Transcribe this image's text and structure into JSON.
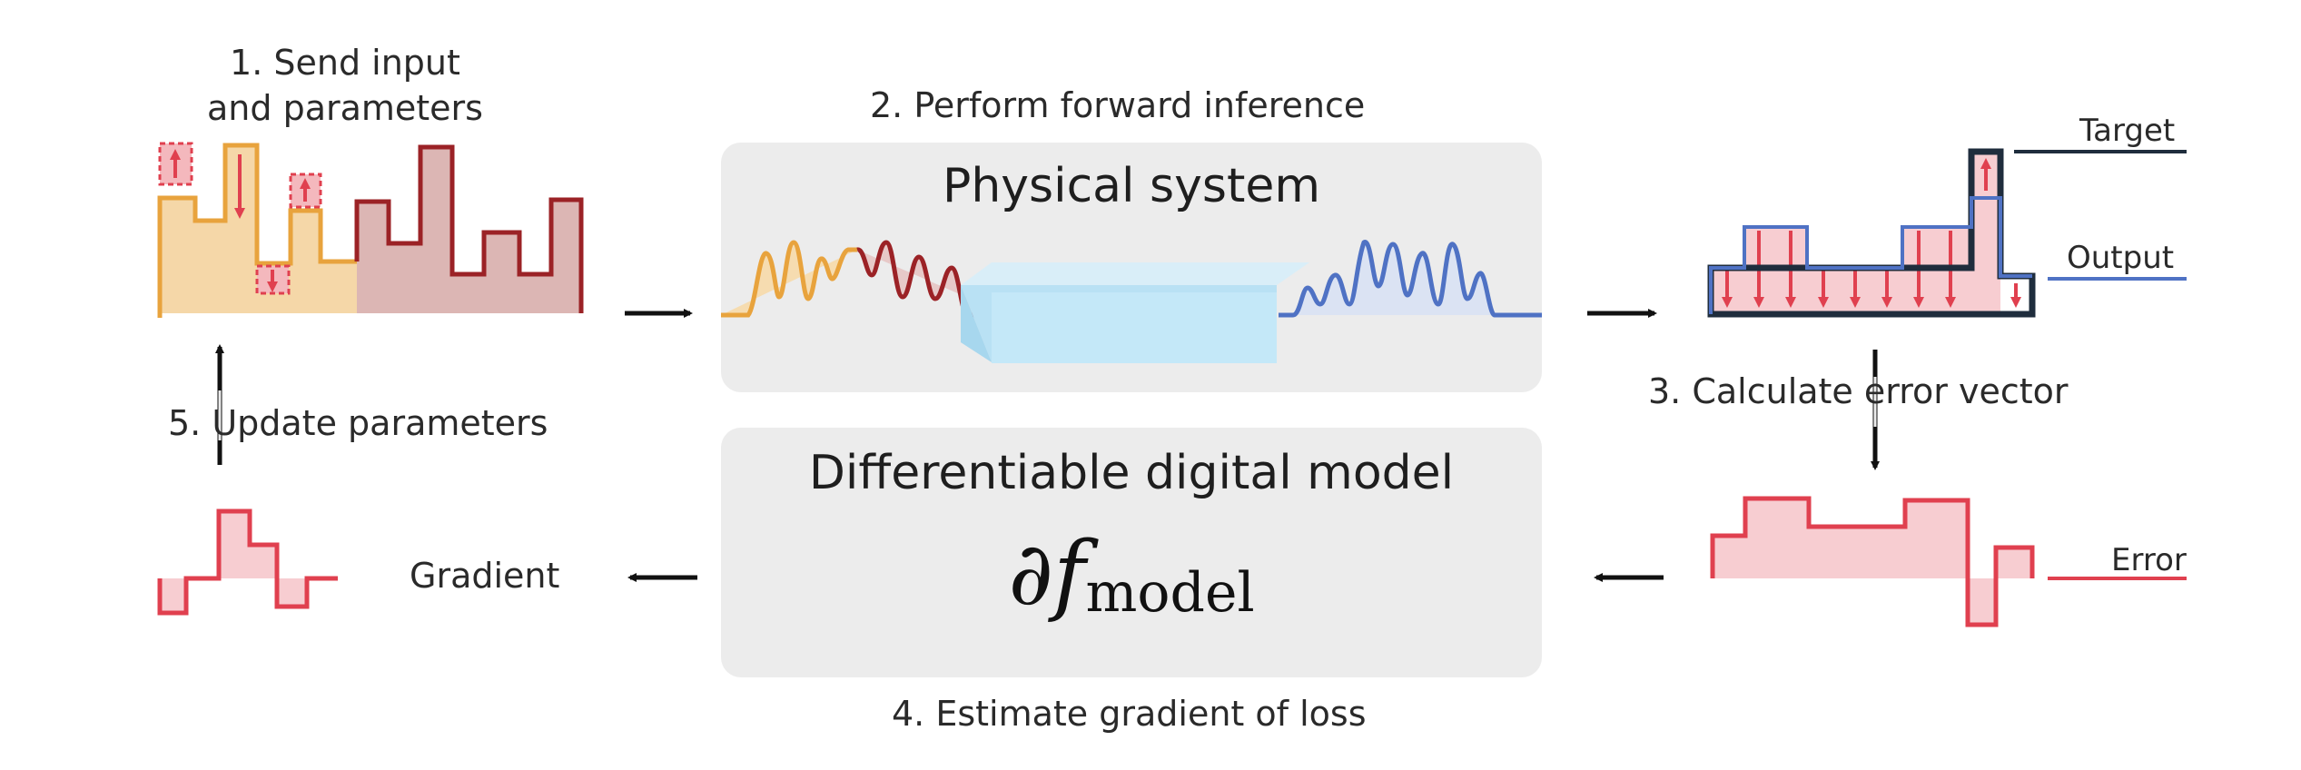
{
  "steps": {
    "send_line1": "1. Send input",
    "send_line2": "and parameters",
    "forward": "2. Perform forward inference",
    "error_calc": "3. Calculate error vector",
    "gradient_est": "4. Estimate gradient of loss",
    "update": "5. Update parameters"
  },
  "physical_box": {
    "title": "Physical system"
  },
  "digital_box": {
    "title": "Differentiable digital model",
    "formula_symbol": "∂",
    "formula_f": "f",
    "formula_sub": "model"
  },
  "legend": {
    "target": "Target",
    "output": "Output",
    "error": "Error",
    "gradient": "Gradient"
  },
  "colors": {
    "input_orange": "#e8a33d",
    "param_darkred": "#9b2226",
    "output_blue": "#4f72c4",
    "error_red": "#e0404f",
    "target_navy": "#1f2d3d",
    "crystal_blue": "#bfe5f6",
    "box_gray": "#ececec"
  }
}
